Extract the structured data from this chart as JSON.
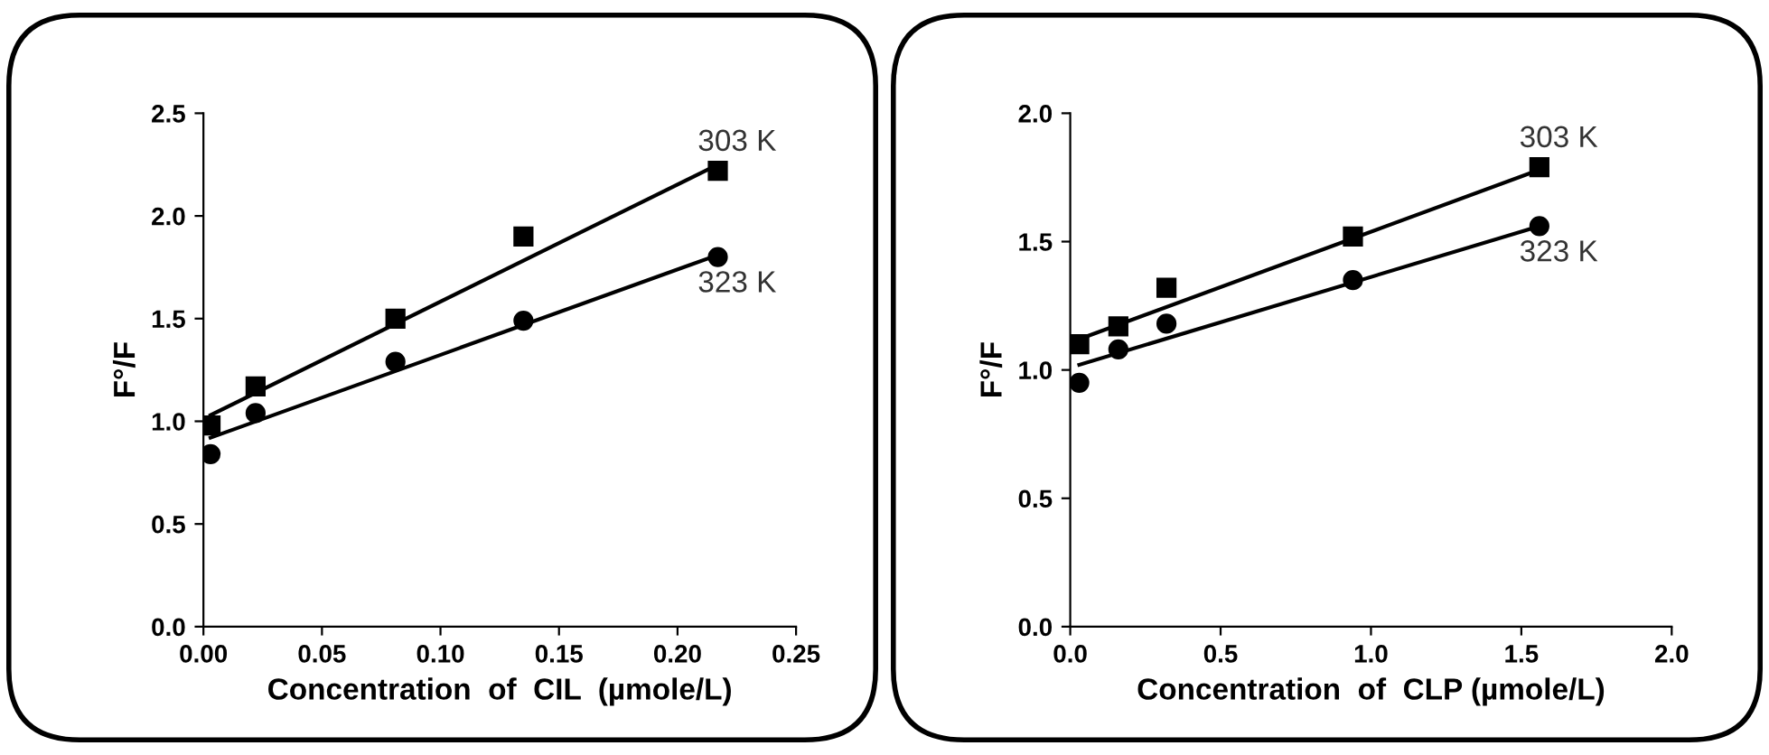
{
  "chart_data": [
    {
      "type": "scatter",
      "xlabel": "Concentration  of  CIL  (µmole/L)",
      "ylabel": "F°/F",
      "xlim": [
        0,
        0.25
      ],
      "ylim": [
        0,
        2.5
      ],
      "xticks": [
        {
          "value": 0,
          "label": "0.00"
        },
        0.05,
        {
          "value": 0.1,
          "label": "0.10"
        },
        0.15,
        {
          "value": 0.2,
          "label": "0.20"
        },
        0.25
      ],
      "yticks": [
        {
          "value": 0,
          "label": "0.0"
        },
        0.5,
        {
          "value": 1,
          "label": "1.0"
        },
        1.5,
        {
          "value": 2,
          "label": "2.0"
        },
        2.5
      ],
      "grid": false,
      "legend": false,
      "series": [
        {
          "name": "303 K",
          "color": "#000000",
          "marker": "square",
          "x": [
            0.003,
            0.022,
            0.081,
            0.135,
            0.217
          ],
          "values": [
            0.98,
            1.17,
            1.5,
            1.9,
            2.22
          ]
        },
        {
          "name": "323 K",
          "color": "#000000",
          "marker": "circle",
          "x": [
            0.003,
            0.022,
            0.081,
            0.135,
            0.217
          ],
          "values": [
            0.84,
            1.04,
            1.29,
            1.49,
            1.8
          ]
        },
        {
          "type": "line",
          "color": "#000000",
          "x": [
            0.003,
            0.217
          ],
          "values": [
            1.03,
            2.25
          ]
        },
        {
          "type": "line",
          "color": "#000000",
          "x": [
            0.003,
            0.217
          ],
          "values": [
            0.92,
            1.81
          ]
        }
      ]
    },
    {
      "type": "scatter",
      "xlabel": "Concentration  of  CLP (µmole/L)",
      "ylabel": "F°/F",
      "xlim": [
        0,
        2
      ],
      "ylim": [
        0,
        2
      ],
      "xticks": [
        {
          "value": 0,
          "label": "0.0"
        },
        0.5,
        {
          "value": 1,
          "label": "1.0"
        },
        1.5,
        {
          "value": 2,
          "label": "2.0"
        }
      ],
      "yticks": [
        {
          "value": 0,
          "label": "0.0"
        },
        0.5,
        {
          "value": 1,
          "label": "1.0"
        },
        1.5,
        {
          "value": 2,
          "label": "2.0"
        }
      ],
      "grid": false,
      "legend": false,
      "series": [
        {
          "name": "303 K",
          "color": "#000000",
          "marker": "square",
          "x": [
            0.03,
            0.16,
            0.32,
            0.94,
            1.56
          ],
          "values": [
            1.1,
            1.17,
            1.32,
            1.52,
            1.79
          ]
        },
        {
          "name": "323 K",
          "color": "#000000",
          "marker": "circle",
          "x": [
            0.03,
            0.16,
            0.32,
            0.94,
            1.56
          ],
          "values": [
            0.95,
            1.08,
            1.18,
            1.35,
            1.56
          ]
        },
        {
          "type": "line",
          "color": "#000000",
          "x": [
            0.03,
            1.56
          ],
          "values": [
            1.12,
            1.78
          ]
        },
        {
          "type": "line",
          "color": "#000000",
          "x": [
            0.03,
            1.56
          ],
          "values": [
            1.02,
            1.56
          ]
        }
      ]
    }
  ]
}
